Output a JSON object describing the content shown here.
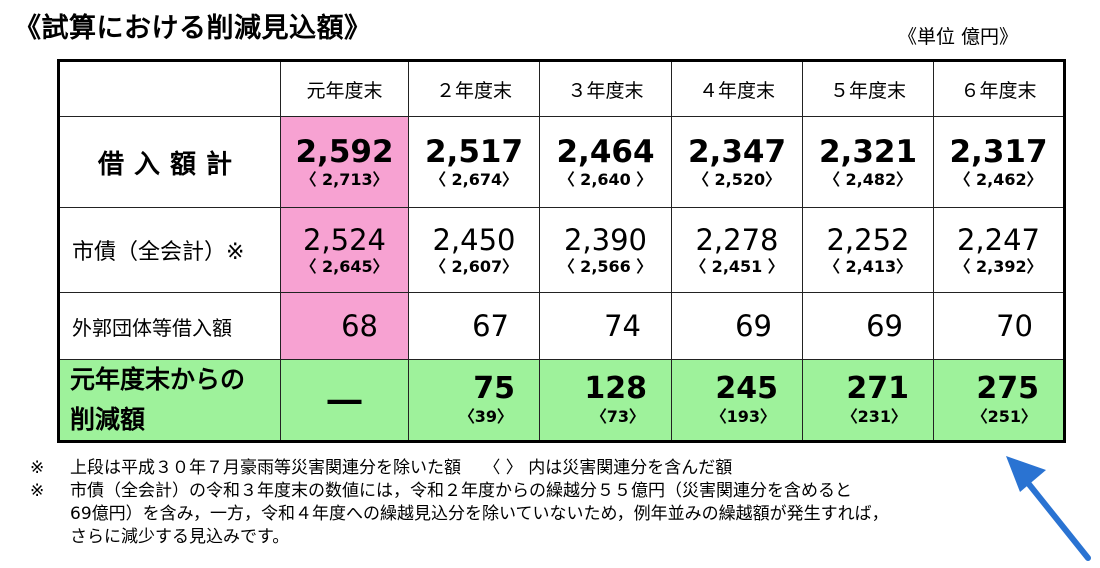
{
  "title": "《試算における削減見込額》",
  "unit": "《単位 億円》",
  "columns": [
    "元年度末",
    "２年度末",
    "３年度末",
    "４年度末",
    "５年度末",
    "６年度末"
  ],
  "rows": {
    "total": {
      "label": "借入額計",
      "values": [
        "2,592",
        "2,517",
        "2,464",
        "2,347",
        "2,321",
        "2,317"
      ],
      "sub": [
        "〈 2,713〉",
        "〈 2,674〉",
        "〈 2,640 〉",
        "〈 2,520〉",
        "〈 2,482〉",
        "〈 2,462〉"
      ]
    },
    "bond": {
      "label": "市債（全会計）※",
      "values": [
        "2,524",
        "2,450",
        "2,390",
        "2,278",
        "2,252",
        "2,247"
      ],
      "sub": [
        "〈 2,645〉",
        "〈 2,607〉",
        "〈 2,566 〉",
        "〈 2,451 〉",
        "〈 2,413〉",
        "〈 2,392〉"
      ]
    },
    "external": {
      "label": "外郭団体等借入額",
      "values": [
        "68",
        "67",
        "74",
        "69",
        "69",
        "70"
      ]
    },
    "reduction": {
      "label_line1": "元年度末からの",
      "label_line2": "削減額",
      "first": "―",
      "values": [
        "75",
        "128",
        "245",
        "271",
        "275"
      ],
      "sub": [
        "〈39〉",
        "〈73〉",
        "〈193〉",
        "〈231〉",
        "〈251〉"
      ]
    }
  },
  "notes": {
    "mark1": "※",
    "line1": "上段は平成３０年７月豪雨等災害関連分を除いた額　 〈 〉 内は災害関連分を含んだ額",
    "mark2": "※",
    "line2": "市債（全会計）の令和３年度末の数値には，令和２年度からの繰越分５５億円（災害関連分を含めると",
    "line3": "69億円）を含み，一方，令和４年度への繰越見込分を除いていないため，例年並みの繰越額が発生すれば，",
    "line4": "さらに減少する見込みです。"
  },
  "colors": {
    "pink": "#f7a2d2",
    "green": "#9ef29b",
    "arrow": "#2a73d2"
  },
  "icons": [
    "arrow-icon"
  ]
}
